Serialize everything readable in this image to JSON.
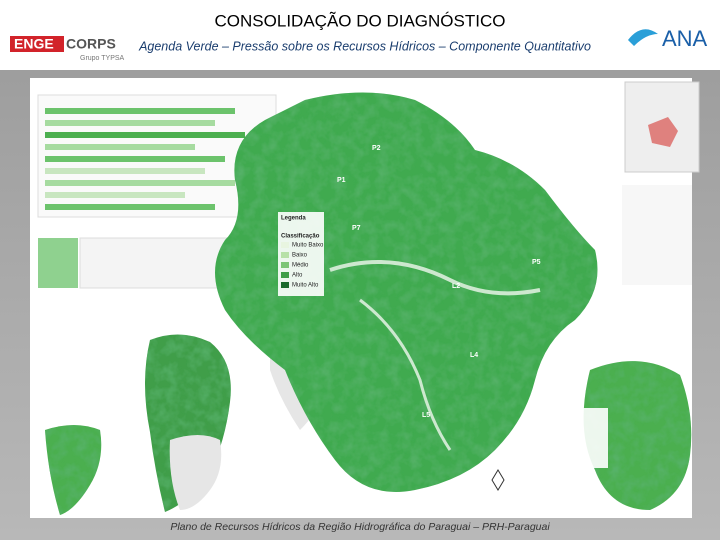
{
  "header": {
    "title": "CONSOLIDAÇÃO DO DIAGNÓSTICO",
    "subtitle": "Agenda Verde – Pressão sobre os Recursos Hídricos – Componente Quantitativo",
    "logo_left_a": "ENGE",
    "logo_left_b": "CORPS",
    "logo_left_sub": "Grupo TYPSA",
    "logo_right": "ANA"
  },
  "map": {
    "legend_title": "Legenda",
    "legend_class": "Classificação",
    "classes": [
      "Muito Baixo",
      "Baixo",
      "Médio",
      "Alto",
      "Muito Alto"
    ],
    "labels": [
      "P2",
      "P1",
      "P7",
      "L2",
      "L4",
      "L5",
      "P5"
    ]
  },
  "footer": "Plano de Recursos Hídricos da Região Hidrográfica do Paraguai – PRH-Paraguai"
}
